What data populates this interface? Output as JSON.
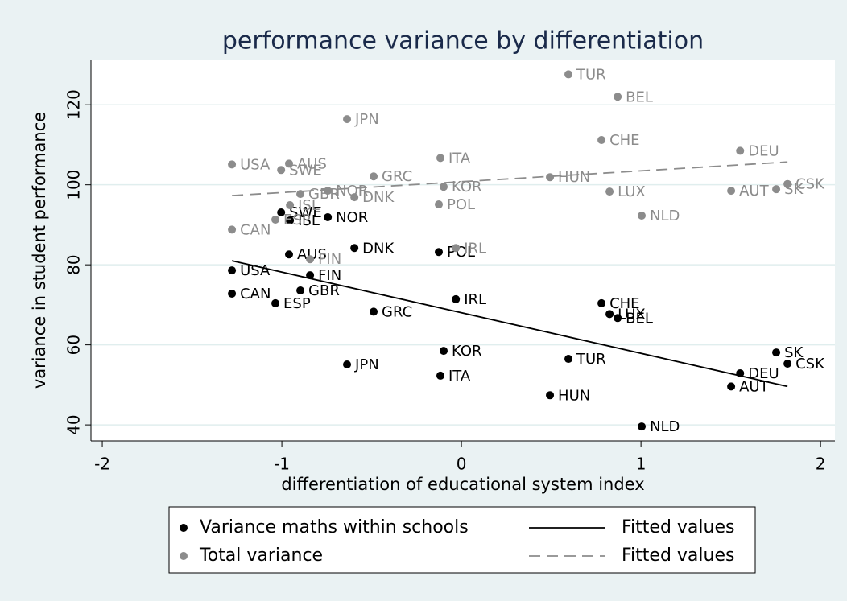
{
  "chart_data": {
    "type": "scatter",
    "title": "performance variance by differentiation",
    "x_label": "differentiation of educational system index",
    "y_label": "variance in student performance",
    "point_labels": [
      "USA",
      "CAN",
      "ESP",
      "GBR",
      "FIN",
      "AUS",
      "SWE",
      "ISL",
      "NOR",
      "DNK",
      "POL",
      "IRL",
      "GRC",
      "JPN",
      "KOR",
      "ITA",
      "HUN",
      "TUR",
      "CHE",
      "LUX",
      "BEL",
      "NLD",
      "AUT",
      "DEU",
      "SK",
      "CSK"
    ],
    "x": [
      -1.278,
      -1.278,
      -1.036,
      -0.897,
      -0.843,
      -0.96,
      -1.004,
      -0.955,
      -0.744,
      -0.596,
      -0.126,
      -0.031,
      -0.489,
      -0.637,
      -0.099,
      -0.117,
      0.493,
      0.596,
      0.78,
      0.825,
      0.87,
      1.004,
      1.502,
      1.552,
      1.753,
      1.816
    ],
    "series": [
      {
        "name": "Variance maths within schools",
        "color": "#000000",
        "values": [
          78.6,
          72.8,
          70.4,
          73.6,
          77.4,
          82.6,
          93.1,
          91.1,
          91.9,
          84.2,
          83.2,
          71.4,
          68.3,
          55.1,
          58.5,
          52.3,
          47.4,
          56.5,
          70.4,
          67.7,
          66.7,
          39.6,
          49.6,
          52.9,
          58.1,
          55.3
        ]
      },
      {
        "name": "Total variance",
        "color": "#8c8c8c",
        "values": [
          105.1,
          88.8,
          91.3,
          97.7,
          81.4,
          105.3,
          103.7,
          94.9,
          98.5,
          96.9,
          95.1,
          84.2,
          102.1,
          116.4,
          99.5,
          106.7,
          101.9,
          127.6,
          111.2,
          98.3,
          122.0,
          92.3,
          98.5,
          108.5,
          98.9,
          100.2
        ]
      }
    ],
    "fits": [
      {
        "name": "Fitted values",
        "color": "#000000",
        "dashed": false,
        "x": [
          -1.278,
          1.816
        ],
        "values": [
          81.0,
          49.6
        ]
      },
      {
        "name": "Fitted values",
        "color": "#8c8c8c",
        "dashed": true,
        "x": [
          -1.278,
          1.816
        ],
        "values": [
          97.3,
          105.7
        ]
      }
    ],
    "xlim": [
      -2.063,
      2.08
    ],
    "ylim": [
      36,
      131.1
    ],
    "xticks": [
      -2,
      -1,
      0,
      1,
      2
    ],
    "yticks": [
      40,
      60,
      80,
      100,
      120
    ],
    "grid": true,
    "legend_position": "bottom"
  }
}
